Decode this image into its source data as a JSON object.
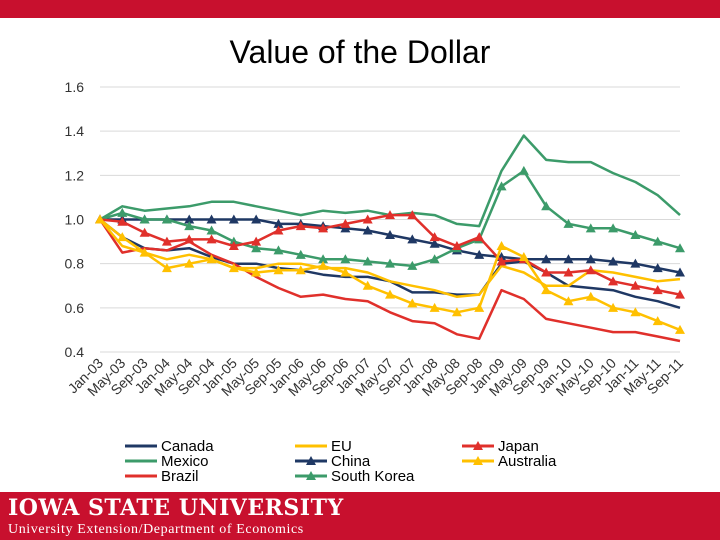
{
  "slide": {
    "title": "Value of the Dollar",
    "footer_brand": "IOWA STATE UNIVERSITY",
    "footer_unit": "University Extension/Department of Economics",
    "accent_color": "#c8102e"
  },
  "chart_data": {
    "type": "line",
    "title": "Value of the Dollar",
    "xlabel": "",
    "ylabel": "",
    "ylim": [
      0.4,
      1.6
    ],
    "yticks": [
      "0.4",
      "0.6",
      "0.8",
      "1.0",
      "1.2",
      "1.4",
      "1.6"
    ],
    "grid": true,
    "legend_position": "bottom",
    "categories": [
      "Jan-03",
      "May-03",
      "Sep-03",
      "Jan-04",
      "May-04",
      "Sep-04",
      "Jan-05",
      "May-05",
      "Sep-05",
      "Jan-06",
      "May-06",
      "Sep-06",
      "Jan-07",
      "May-07",
      "Sep-07",
      "Jan-08",
      "May-08",
      "Sep-08",
      "Jan-09",
      "May-09",
      "Sep-09",
      "Jan-10",
      "May-10",
      "Sep-10",
      "Jan-11",
      "May-11",
      "Sep-11"
    ],
    "series": [
      {
        "name": "Canada",
        "color": "#1f3864",
        "marker": "none",
        "values": [
          1.0,
          0.92,
          0.87,
          0.86,
          0.87,
          0.83,
          0.8,
          0.8,
          0.78,
          0.77,
          0.75,
          0.74,
          0.74,
          0.72,
          0.67,
          0.67,
          0.66,
          0.66,
          0.8,
          0.81,
          0.76,
          0.7,
          0.69,
          0.68,
          0.65,
          0.63,
          0.6
        ]
      },
      {
        "name": "Mexico",
        "color": "#3c9b6a",
        "marker": "none",
        "values": [
          1.0,
          1.06,
          1.04,
          1.05,
          1.06,
          1.08,
          1.08,
          1.06,
          1.04,
          1.02,
          1.04,
          1.03,
          1.04,
          1.02,
          1.03,
          1.02,
          0.98,
          0.97,
          1.22,
          1.38,
          1.27,
          1.26,
          1.26,
          1.21,
          1.17,
          1.11,
          1.02
        ]
      },
      {
        "name": "Brazil",
        "color": "#e0302b",
        "marker": "none",
        "values": [
          1.0,
          0.85,
          0.87,
          0.86,
          0.9,
          0.84,
          0.8,
          0.74,
          0.69,
          0.65,
          0.66,
          0.64,
          0.63,
          0.58,
          0.54,
          0.53,
          0.48,
          0.46,
          0.68,
          0.64,
          0.55,
          0.53,
          0.51,
          0.49,
          0.49,
          0.47,
          0.45
        ]
      },
      {
        "name": "EU",
        "color": "#ffc000",
        "marker": "none",
        "values": [
          1.0,
          0.88,
          0.85,
          0.82,
          0.84,
          0.82,
          0.78,
          0.78,
          0.8,
          0.8,
          0.78,
          0.78,
          0.76,
          0.72,
          0.7,
          0.68,
          0.65,
          0.66,
          0.79,
          0.76,
          0.7,
          0.7,
          0.77,
          0.76,
          0.74,
          0.72,
          0.73
        ]
      },
      {
        "name": "China",
        "color": "#1f3864",
        "marker": "triangle",
        "values": [
          1.0,
          1.0,
          1.0,
          1.0,
          1.0,
          1.0,
          1.0,
          1.0,
          0.98,
          0.98,
          0.97,
          0.96,
          0.95,
          0.93,
          0.91,
          0.89,
          0.86,
          0.84,
          0.83,
          0.82,
          0.82,
          0.82,
          0.82,
          0.81,
          0.8,
          0.78,
          0.76
        ]
      },
      {
        "name": "South Korea",
        "color": "#3c9b6a",
        "marker": "triangle",
        "values": [
          1.0,
          1.03,
          1.0,
          1.0,
          0.97,
          0.95,
          0.9,
          0.87,
          0.86,
          0.84,
          0.82,
          0.82,
          0.81,
          0.8,
          0.79,
          0.82,
          0.87,
          0.91,
          1.15,
          1.22,
          1.06,
          0.98,
          0.96,
          0.96,
          0.93,
          0.9,
          0.87
        ]
      },
      {
        "name": "Japan",
        "color": "#e0302b",
        "marker": "triangle",
        "values": [
          1.0,
          0.99,
          0.94,
          0.9,
          0.91,
          0.91,
          0.88,
          0.9,
          0.95,
          0.97,
          0.96,
          0.98,
          1.0,
          1.02,
          1.02,
          0.92,
          0.88,
          0.92,
          0.81,
          0.82,
          0.76,
          0.76,
          0.77,
          0.72,
          0.7,
          0.68,
          0.66
        ]
      },
      {
        "name": "Australia",
        "color": "#ffc000",
        "marker": "triangle",
        "values": [
          1.0,
          0.92,
          0.85,
          0.78,
          0.8,
          0.82,
          0.78,
          0.76,
          0.77,
          0.77,
          0.79,
          0.76,
          0.7,
          0.66,
          0.62,
          0.6,
          0.58,
          0.6,
          0.88,
          0.83,
          0.68,
          0.63,
          0.65,
          0.6,
          0.58,
          0.54,
          0.5
        ]
      }
    ]
  }
}
